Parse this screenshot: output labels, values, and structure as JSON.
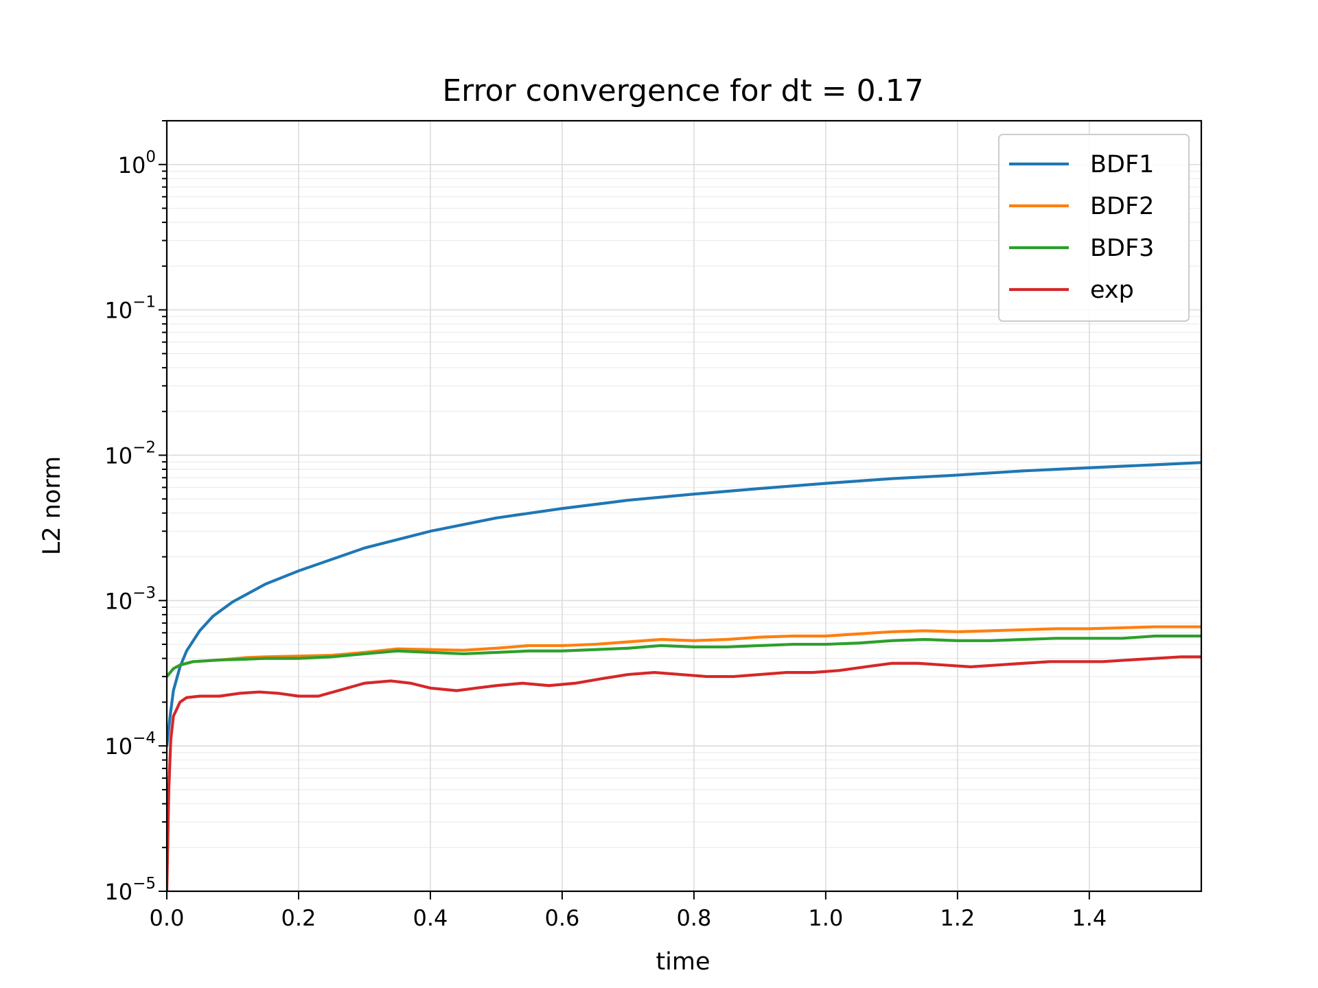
{
  "chart_data": {
    "type": "line",
    "title": "Error convergence for dt = 0.17",
    "xlabel": "time",
    "ylabel": "L2 norm",
    "xlim": [
      0,
      1.57
    ],
    "ylim": [
      1e-05,
      2
    ],
    "yscale": "log",
    "grid": true,
    "legend_position": "top-right",
    "x_ticks": [
      "0.0",
      "0.2",
      "0.4",
      "0.6",
      "0.8",
      "1.0",
      "1.2",
      "1.4"
    ],
    "x_tick_values": [
      0,
      0.2,
      0.4,
      0.6,
      0.8,
      1.0,
      1.2,
      1.4
    ],
    "y_ticks": [
      {
        "base": "10",
        "exp": "−5",
        "value": 1e-05
      },
      {
        "base": "10",
        "exp": "−4",
        "value": 0.0001
      },
      {
        "base": "10",
        "exp": "−3",
        "value": 0.001
      },
      {
        "base": "10",
        "exp": "−2",
        "value": 0.01
      },
      {
        "base": "10",
        "exp": "−1",
        "value": 0.1
      },
      {
        "base": "10",
        "exp": "0",
        "value": 1
      }
    ],
    "series": [
      {
        "name": "BDF1",
        "color": "#1f77b4",
        "x": [
          0.0,
          0.005,
          0.01,
          0.02,
          0.03,
          0.05,
          0.07,
          0.1,
          0.15,
          0.2,
          0.3,
          0.4,
          0.5,
          0.6,
          0.7,
          0.8,
          0.9,
          1.0,
          1.1,
          1.2,
          1.3,
          1.4,
          1.5,
          1.57
        ],
        "y": [
          0.0001,
          0.00016,
          0.00024,
          0.00035,
          0.00045,
          0.00062,
          0.00078,
          0.00098,
          0.0013,
          0.0016,
          0.0023,
          0.003,
          0.0037,
          0.0043,
          0.0049,
          0.0054,
          0.0059,
          0.0064,
          0.0069,
          0.0073,
          0.0078,
          0.0082,
          0.0086,
          0.0089
        ]
      },
      {
        "name": "BDF2",
        "color": "#ff7f0e",
        "x": [
          0.0,
          0.01,
          0.02,
          0.04,
          0.08,
          0.12,
          0.15,
          0.2,
          0.25,
          0.3,
          0.35,
          0.4,
          0.45,
          0.5,
          0.55,
          0.6,
          0.65,
          0.7,
          0.75,
          0.8,
          0.85,
          0.9,
          0.95,
          1.0,
          1.05,
          1.1,
          1.15,
          1.2,
          1.25,
          1.3,
          1.35,
          1.4,
          1.45,
          1.5,
          1.57
        ],
        "y": [
          0.0003,
          0.00034,
          0.00036,
          0.00038,
          0.00039,
          0.000405,
          0.00041,
          0.000415,
          0.00042,
          0.00044,
          0.000465,
          0.00046,
          0.000455,
          0.00047,
          0.00049,
          0.00049,
          0.0005,
          0.00052,
          0.00054,
          0.00053,
          0.00054,
          0.00056,
          0.00057,
          0.00057,
          0.00059,
          0.00061,
          0.00062,
          0.00061,
          0.00062,
          0.00063,
          0.00064,
          0.00064,
          0.00065,
          0.00066,
          0.00066
        ]
      },
      {
        "name": "BDF3",
        "color": "#2ca02c",
        "x": [
          0.0,
          0.01,
          0.02,
          0.04,
          0.08,
          0.12,
          0.15,
          0.2,
          0.25,
          0.3,
          0.35,
          0.4,
          0.45,
          0.5,
          0.55,
          0.6,
          0.65,
          0.7,
          0.75,
          0.8,
          0.85,
          0.9,
          0.95,
          1.0,
          1.05,
          1.1,
          1.15,
          1.2,
          1.25,
          1.3,
          1.35,
          1.4,
          1.45,
          1.5,
          1.57
        ],
        "y": [
          0.0003,
          0.00034,
          0.00036,
          0.00038,
          0.00039,
          0.000395,
          0.0004,
          0.0004,
          0.00041,
          0.00043,
          0.00045,
          0.00044,
          0.00043,
          0.00044,
          0.00045,
          0.00045,
          0.00046,
          0.00047,
          0.00049,
          0.00048,
          0.00048,
          0.00049,
          0.0005,
          0.0005,
          0.00051,
          0.00053,
          0.00054,
          0.00053,
          0.00053,
          0.00054,
          0.00055,
          0.00055,
          0.00055,
          0.00057,
          0.00057
        ]
      },
      {
        "name": "exp",
        "color": "#d62728",
        "x": [
          0.0,
          0.003,
          0.006,
          0.01,
          0.02,
          0.03,
          0.05,
          0.08,
          0.11,
          0.14,
          0.17,
          0.2,
          0.23,
          0.26,
          0.3,
          0.34,
          0.37,
          0.4,
          0.44,
          0.47,
          0.5,
          0.54,
          0.58,
          0.62,
          0.66,
          0.7,
          0.74,
          0.78,
          0.82,
          0.86,
          0.9,
          0.94,
          0.98,
          1.02,
          1.06,
          1.1,
          1.14,
          1.18,
          1.22,
          1.26,
          1.3,
          1.34,
          1.38,
          1.42,
          1.46,
          1.5,
          1.54,
          1.57
        ],
        "y": [
          1e-05,
          5e-05,
          0.00011,
          0.00016,
          0.0002,
          0.000215,
          0.00022,
          0.00022,
          0.00023,
          0.000235,
          0.00023,
          0.00022,
          0.00022,
          0.00024,
          0.00027,
          0.00028,
          0.00027,
          0.00025,
          0.00024,
          0.00025,
          0.00026,
          0.00027,
          0.00026,
          0.00027,
          0.00029,
          0.00031,
          0.00032,
          0.00031,
          0.0003,
          0.0003,
          0.00031,
          0.00032,
          0.00032,
          0.00033,
          0.00035,
          0.00037,
          0.00037,
          0.00036,
          0.00035,
          0.00036,
          0.00037,
          0.00038,
          0.00038,
          0.00038,
          0.00039,
          0.0004,
          0.00041,
          0.00041
        ]
      }
    ]
  }
}
